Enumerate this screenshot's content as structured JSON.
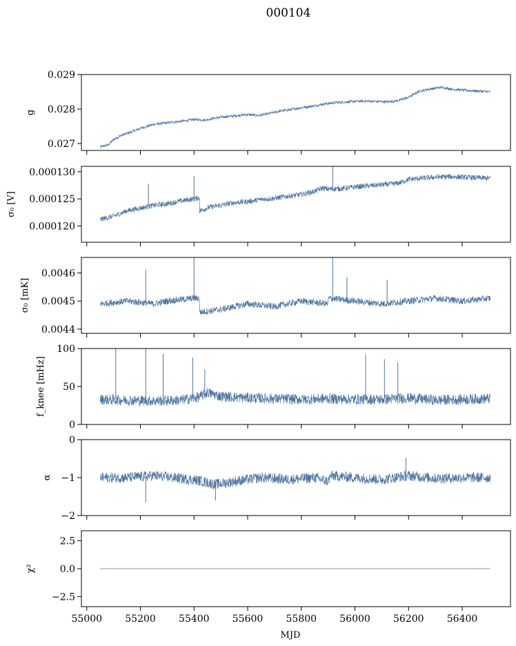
{
  "figure": {
    "title": "000104",
    "xlabel": "MJD",
    "x_ticks": [
      55000,
      55200,
      55400,
      55600,
      55800,
      56000,
      56200,
      56400
    ],
    "xlim": [
      54980,
      56580
    ],
    "series_color": "#4c72a0"
  },
  "chart_data": [
    {
      "type": "line",
      "id": "gain",
      "ylabel": "g",
      "ylim": [
        0.0268,
        0.029
      ],
      "yticks": [
        0.027,
        0.028,
        0.029
      ],
      "ytick_labels": [
        "0.027",
        "0.028",
        "0.029"
      ],
      "x": [
        55050,
        55080,
        55100,
        55130,
        55160,
        55200,
        55250,
        55280,
        55320,
        55360,
        55400,
        55440,
        55480,
        55520,
        55560,
        55600,
        55640,
        55680,
        55720,
        55760,
        55800,
        55840,
        55880,
        55920,
        55960,
        56000,
        56040,
        56080,
        56120,
        56160,
        56200,
        56240,
        56280,
        56320,
        56360,
        56400,
        56440,
        56480,
        56505
      ],
      "y": [
        0.0269,
        0.02696,
        0.02712,
        0.02724,
        0.02732,
        0.02744,
        0.02756,
        0.02758,
        0.02762,
        0.02765,
        0.0277,
        0.02768,
        0.02774,
        0.02778,
        0.02781,
        0.02784,
        0.02781,
        0.02787,
        0.02794,
        0.02798,
        0.02804,
        0.02808,
        0.02814,
        0.02818,
        0.0282,
        0.02822,
        0.02823,
        0.02822,
        0.02821,
        0.02824,
        0.02834,
        0.02852,
        0.02858,
        0.02863,
        0.02858,
        0.02855,
        0.02853,
        0.02851,
        0.0285
      ],
      "noise": 4e-05
    },
    {
      "type": "line",
      "id": "sigma0-volts",
      "ylabel": "σ₀ [V]",
      "ylim": [
        0.000117,
        0.000131
      ],
      "yticks": [
        0.00012,
        0.000125,
        0.00013
      ],
      "ytick_labels": [
        "0.000120",
        "0.000125",
        "0.000130"
      ],
      "x": [
        55050,
        55100,
        55150,
        55200,
        55250,
        55300,
        55350,
        55400,
        55420,
        55421,
        55460,
        55500,
        55550,
        55600,
        55650,
        55700,
        55750,
        55800,
        55850,
        55880,
        55900,
        55950,
        56000,
        56050,
        56100,
        56150,
        56170,
        56200,
        56250,
        56300,
        56350,
        56400,
        56450,
        56505
      ],
      "y": [
        0.0001212,
        0.0001218,
        0.0001228,
        0.0001233,
        0.0001238,
        0.0001241,
        0.0001246,
        0.000125,
        0.0001252,
        0.0001228,
        0.0001235,
        0.0001238,
        0.0001243,
        0.0001245,
        0.0001249,
        0.0001251,
        0.0001255,
        0.0001258,
        0.0001264,
        0.000127,
        0.0001268,
        0.0001269,
        0.0001272,
        0.0001274,
        0.0001276,
        0.0001278,
        0.000128,
        0.0001286,
        0.0001288,
        0.000129,
        0.0001291,
        0.000129,
        0.0001289,
        0.0001288
      ],
      "noise": 5e-07,
      "spikes": [
        [
          55230,
          0.0001278
        ],
        [
          55400,
          0.0001292
        ],
        [
          55917,
          0.0001315
        ]
      ]
    },
    {
      "type": "line",
      "id": "sigma0-mk",
      "ylabel": "σ₀ [mK]",
      "ylim": [
        0.004385,
        0.004655
      ],
      "yticks": [
        0.0044,
        0.0045,
        0.0046
      ],
      "ytick_labels": [
        "0.0044",
        "0.0045",
        "0.0046"
      ],
      "x": [
        55050,
        55150,
        55250,
        55300,
        55400,
        55420,
        55421,
        55500,
        55600,
        55700,
        55800,
        55900,
        55901,
        56000,
        56100,
        56200,
        56300,
        56400,
        56505
      ],
      "y": [
        0.00449,
        0.0045,
        0.00449,
        0.0045,
        0.00451,
        0.00451,
        0.00446,
        0.00447,
        0.00449,
        0.00448,
        0.0045,
        0.00449,
        0.00451,
        0.0045,
        0.00449,
        0.0045,
        0.00451,
        0.0045,
        0.00451
      ],
      "noise": 1.2e-05,
      "spikes": [
        [
          55220,
          0.004612
        ],
        [
          55400,
          0.00467
        ],
        [
          55917,
          0.00466
        ],
        [
          55970,
          0.004585
        ],
        [
          56120,
          0.004575
        ]
      ]
    },
    {
      "type": "line",
      "id": "fknee",
      "ylabel": "f_knee [mHz]",
      "ylim": [
        0,
        100
      ],
      "yticks": [
        0,
        50,
        100
      ],
      "ytick_labels": [
        "0",
        "50",
        "100"
      ],
      "x": [
        55050,
        55150,
        55250,
        55350,
        55420,
        55450,
        55500,
        55600,
        55700,
        55800,
        55900,
        56000,
        56100,
        56200,
        56300,
        56400,
        56505
      ],
      "y": [
        33,
        32,
        31,
        32,
        36,
        42,
        37,
        35,
        34,
        33,
        34,
        33,
        33,
        35,
        32,
        33,
        34
      ],
      "noise": 7,
      "spikes": [
        [
          55108,
          100
        ],
        [
          55220,
          100
        ],
        [
          55285,
          93
        ],
        [
          55395,
          88
        ],
        [
          55440,
          72
        ],
        [
          56040,
          92
        ],
        [
          56110,
          86
        ],
        [
          56160,
          82
        ]
      ]
    },
    {
      "type": "line",
      "id": "alpha",
      "ylabel": "α",
      "ylim": [
        -2,
        0
      ],
      "yticks": [
        -2,
        -1,
        0
      ],
      "ytick_labels": [
        "−2",
        "−1",
        "0"
      ],
      "x": [
        55050,
        55150,
        55250,
        55350,
        55420,
        55480,
        55550,
        55650,
        55750,
        55850,
        55900,
        55910,
        56000,
        56100,
        56200,
        56300,
        56400,
        56505
      ],
      "y": [
        -1.0,
        -1.0,
        -0.95,
        -1.02,
        -1.08,
        -1.18,
        -1.1,
        -1.0,
        -1.05,
        -1.0,
        -1.1,
        -0.95,
        -1.0,
        -1.05,
        -0.95,
        -1.02,
        -1.0,
        -1.0
      ],
      "noise": 0.14,
      "spikes": [
        [
          55220,
          -1.65
        ],
        [
          55480,
          -1.6
        ],
        [
          56190,
          -0.48
        ]
      ]
    },
    {
      "type": "line",
      "id": "chi2",
      "ylabel": "χ²",
      "ylim": [
        -3.4,
        3.4
      ],
      "yticks": [
        -2.5,
        0,
        2.5
      ],
      "ytick_labels": [
        "−2.5",
        "0.0",
        "2.5"
      ],
      "x": [
        55050,
        56505
      ],
      "y": [
        0,
        0
      ],
      "noise": 0
    }
  ]
}
